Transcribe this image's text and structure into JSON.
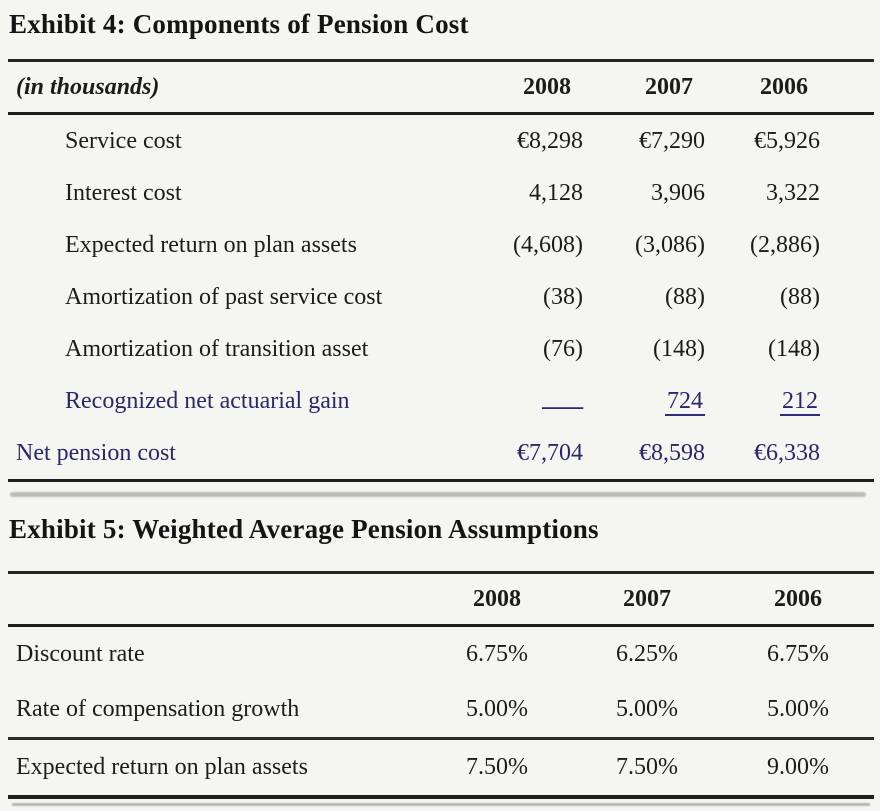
{
  "colors": {
    "background": "#f5f5f1",
    "text_ink": "#1c1c1c",
    "navy_ink": "#28286b",
    "rule_line": "#1d1d1d"
  },
  "exhibit4": {
    "title": "Exhibit 4: Components of Pension Cost",
    "unit_label": "(in thousands)",
    "years": [
      "2008",
      "2007",
      "2006"
    ],
    "rows": [
      {
        "label": "Service cost",
        "values": [
          "€8,298",
          "€7,290",
          "€5,926"
        ]
      },
      {
        "label": "Interest cost",
        "values": [
          "4,128",
          "3,906",
          "3,322"
        ]
      },
      {
        "label": "Expected return on plan assets",
        "values": [
          "(4,608)",
          "(3,086)",
          "(2,886)"
        ]
      },
      {
        "label": "Amortization of past service cost",
        "values": [
          "(38)",
          "(88)",
          "(88)"
        ]
      },
      {
        "label": "Amortization of transition asset",
        "values": [
          "(76)",
          "(148)",
          "(148)"
        ]
      },
      {
        "label": "Recognized net actuarial gain",
        "values": [
          "—",
          "724",
          "212"
        ]
      },
      {
        "label": "Net pension cost",
        "values": [
          "€7,704",
          "€8,598",
          "€6,338"
        ]
      }
    ]
  },
  "exhibit5": {
    "title": "Exhibit 5: Weighted Average Pension Assumptions",
    "years": [
      "2008",
      "2007",
      "2006"
    ],
    "rows": [
      {
        "label": "Discount rate",
        "values": [
          "6.75%",
          "6.25%",
          "6.75%"
        ]
      },
      {
        "label": "Rate of compensation growth",
        "values": [
          "5.00%",
          "5.00%",
          "5.00%"
        ]
      },
      {
        "label": "Expected return on plan assets",
        "values": [
          "7.50%",
          "7.50%",
          "9.00%"
        ]
      }
    ]
  }
}
